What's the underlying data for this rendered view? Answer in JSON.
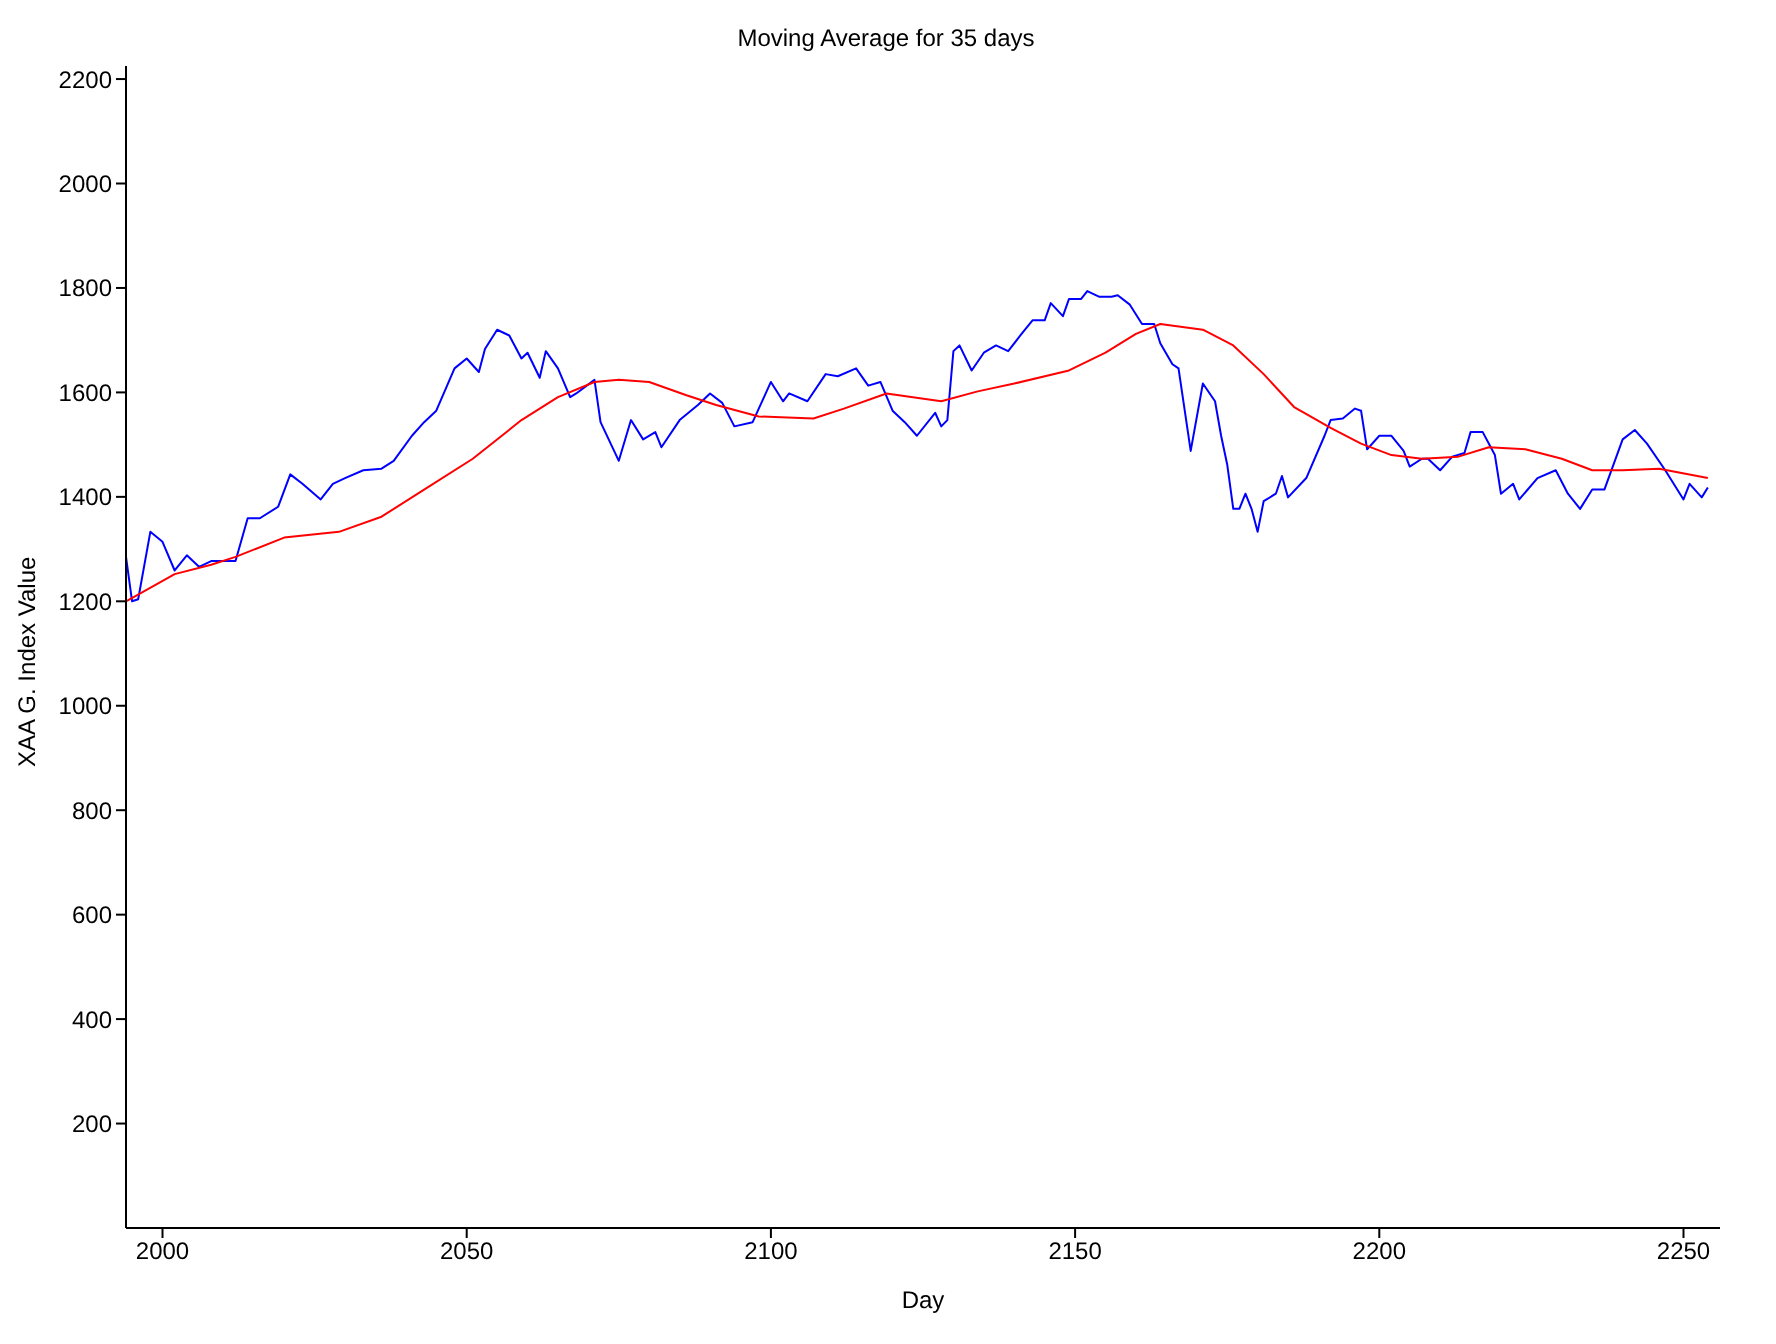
{
  "chart_data": {
    "type": "line",
    "title": "Moving Average for 35 days",
    "xlabel": "Day",
    "ylabel": "XAA G. Index Value",
    "xlim": [
      1994,
      2256
    ],
    "xticks": [
      2000,
      2050,
      2100,
      2150,
      2200,
      2250
    ],
    "ylim": [
      0,
      2225
    ],
    "yticks": [
      200,
      400,
      600,
      800,
      1000,
      1200,
      1400,
      1600,
      1800,
      2000,
      2200
    ],
    "grid": false,
    "legend": false,
    "marker": "none",
    "line_style": "solid",
    "series": [
      {
        "color": "#0000ff",
        "x": [
          1994,
          1995,
          1996,
          1998,
          2000,
          2002,
          2004,
          2006,
          2008,
          2012,
          2014,
          2016,
          2019,
          2021,
          2023,
          2026,
          2028,
          2030,
          2033,
          2036,
          2038,
          2041,
          2043,
          2045,
          2048,
          2050,
          2052,
          2053,
          2055,
          2057,
          2059,
          2060,
          2062,
          2063,
          2065,
          2067,
          2068,
          2071,
          2072,
          2075,
          2077,
          2079,
          2081,
          2082,
          2085,
          2088,
          2090,
          2092,
          2094,
          2097,
          2100,
          2102,
          2103,
          2106,
          2109,
          2111,
          2114,
          2116,
          2118,
          2120,
          2122,
          2124,
          2127,
          2128,
          2129,
          2130,
          2131,
          2133,
          2135,
          2137,
          2139,
          2141,
          2143,
          2145,
          2146,
          2148,
          2149,
          2151,
          2152,
          2154,
          2156,
          2157,
          2159,
          2161,
          2163,
          2164,
          2166,
          2167,
          2169,
          2171,
          2173,
          2174,
          2175,
          2176,
          2177,
          2178,
          2179,
          2180,
          2181,
          2183,
          2184,
          2185,
          2188,
          2191,
          2192,
          2194,
          2196,
          2197,
          2198,
          2200,
          2202,
          2204,
          2205,
          2207,
          2208,
          2210,
          2212,
          2214,
          2215,
          2217,
          2219,
          2220,
          2222,
          2223,
          2226,
          2229,
          2231,
          2233,
          2235,
          2237,
          2240,
          2242,
          2244,
          2247,
          2250,
          2251,
          2253,
          2254
        ],
        "values": [
          1285,
          1200,
          1204,
          1333,
          1314,
          1259,
          1288,
          1266,
          1277,
          1277,
          1359,
          1359,
          1381,
          1443,
          1425,
          1395,
          1425,
          1436,
          1451,
          1454,
          1469,
          1517,
          1543,
          1565,
          1646,
          1665,
          1639,
          1683,
          1720,
          1709,
          1665,
          1676,
          1628,
          1679,
          1646,
          1591,
          1598,
          1624,
          1543,
          1469,
          1547,
          1510,
          1524,
          1495,
          1547,
          1576,
          1598,
          1580,
          1535,
          1543,
          1620,
          1583,
          1598,
          1583,
          1635,
          1631,
          1646,
          1613,
          1620,
          1565,
          1543,
          1517,
          1561,
          1535,
          1547,
          1679,
          1690,
          1642,
          1676,
          1690,
          1679,
          1709,
          1738,
          1738,
          1771,
          1746,
          1779,
          1779,
          1794,
          1783,
          1783,
          1786,
          1768,
          1731,
          1731,
          1694,
          1654,
          1646,
          1488,
          1617,
          1583,
          1517,
          1462,
          1377,
          1377,
          1406,
          1377,
          1333,
          1392,
          1406,
          1440,
          1399,
          1436,
          1517,
          1547,
          1550,
          1569,
          1565,
          1491,
          1517,
          1517,
          1488,
          1458,
          1473,
          1473,
          1451,
          1477,
          1484,
          1524,
          1524,
          1480,
          1406,
          1425,
          1395,
          1436,
          1451,
          1406,
          1377,
          1414,
          1414,
          1510,
          1528,
          1502,
          1451,
          1395,
          1425,
          1399,
          1418
        ]
      },
      {
        "color": "#ff0000",
        "x": [
          1994,
          2002,
          2008,
          2012,
          2020,
          2029,
          2036,
          2043,
          2051,
          2059,
          2065,
          2071,
          2075,
          2080,
          2086,
          2091,
          2098,
          2107,
          2112,
          2119,
          2128,
          2134,
          2140,
          2149,
          2155,
          2160,
          2164,
          2171,
          2176,
          2181,
          2186,
          2192,
          2197,
          2202,
          2207,
          2213,
          2218,
          2224,
          2230,
          2235,
          2240,
          2246,
          2254
        ],
        "values": [
          1200,
          1252,
          1270,
          1285,
          1322,
          1333,
          1362,
          1414,
          1473,
          1547,
          1591,
          1620,
          1624,
          1620,
          1595,
          1576,
          1554,
          1550,
          1569,
          1598,
          1583,
          1602,
          1617,
          1642,
          1676,
          1712,
          1731,
          1720,
          1690,
          1635,
          1572,
          1532,
          1502,
          1480,
          1473,
          1477,
          1495,
          1491,
          1473,
          1451,
          1451,
          1454,
          1436
        ]
      }
    ]
  }
}
